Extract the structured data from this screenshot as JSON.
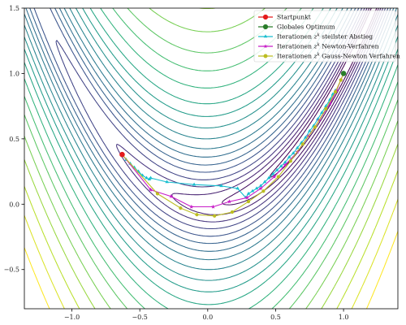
{
  "chart_data": {
    "type": "line",
    "title": "",
    "xlabel": "",
    "ylabel": "",
    "xlim": [
      -1.35,
      1.4
    ],
    "ylim": [
      -0.8,
      1.5
    ],
    "xticks": [
      -1.0,
      -0.5,
      0.0,
      0.5,
      1.0
    ],
    "xtick_labels": [
      "−1.0",
      "−0.5",
      "0.0",
      "0.5",
      "1.0"
    ],
    "yticks": [
      -0.5,
      0.0,
      0.5,
      1.0,
      1.5
    ],
    "ytick_labels": [
      "−0.5",
      "0.0",
      "0.5",
      "1.0",
      "1.5"
    ],
    "grid": false,
    "legend_position": "top-right",
    "background": {
      "kind": "contour",
      "function": "rosenbrock",
      "colormap": "viridis",
      "levels": [
        0.3,
        0.8,
        1.6,
        2.8,
        4.5,
        7,
        10,
        14,
        19,
        26,
        35,
        46,
        60,
        80,
        105,
        135,
        175,
        225,
        290,
        370,
        470
      ]
    },
    "legend": [
      "Startpunkt",
      "Globales Optimum",
      "Iterationen z^k steilster Abstieg",
      "Iterationen z^k Newton-Verfahren",
      "Iterationen z^k Gauss-Newton Verfahren"
    ],
    "series": [
      {
        "name": "Startpunkt",
        "color": "#e41a1c",
        "marker": "circle",
        "points": [
          [
            -0.63,
            0.38
          ]
        ]
      },
      {
        "name": "Globales Optimum",
        "color": "#2a7d2a",
        "marker": "circle",
        "points": [
          [
            1.0,
            1.0
          ]
        ]
      },
      {
        "name": "Iterationen z^k steilster Abstieg",
        "color": "#17becf",
        "marker": "tri",
        "points": [
          [
            -0.63,
            0.38
          ],
          [
            -0.6,
            0.34
          ],
          [
            -0.57,
            0.31
          ],
          [
            -0.54,
            0.28
          ],
          [
            -0.51,
            0.25
          ],
          [
            -0.48,
            0.22
          ],
          [
            -0.45,
            0.2
          ],
          [
            -0.43,
            0.19
          ],
          [
            -0.42,
            0.2
          ],
          [
            -0.3,
            0.17
          ],
          [
            -0.1,
            0.15
          ],
          [
            0.1,
            0.14
          ],
          [
            0.22,
            0.12
          ],
          [
            0.28,
            0.05
          ],
          [
            0.3,
            0.08
          ],
          [
            0.33,
            0.1
          ],
          [
            0.36,
            0.12
          ],
          [
            0.39,
            0.14
          ],
          [
            0.42,
            0.17
          ],
          [
            0.45,
            0.2
          ],
          [
            0.48,
            0.23
          ],
          [
            0.51,
            0.26
          ],
          [
            0.54,
            0.29
          ],
          [
            0.57,
            0.32
          ],
          [
            0.6,
            0.36
          ],
          [
            0.63,
            0.39
          ],
          [
            0.66,
            0.43
          ],
          [
            0.69,
            0.47
          ],
          [
            0.72,
            0.51
          ],
          [
            0.75,
            0.56
          ],
          [
            0.78,
            0.6
          ],
          [
            0.81,
            0.65
          ],
          [
            0.84,
            0.7
          ],
          [
            0.87,
            0.75
          ],
          [
            0.9,
            0.8
          ],
          [
            0.92,
            0.84
          ],
          [
            0.94,
            0.87
          ]
        ]
      },
      {
        "name": "Iterationen z^k Newton-Verfahren",
        "color": "#c81ec8",
        "marker": "star",
        "points": [
          [
            -0.63,
            0.38
          ],
          [
            -0.42,
            0.11
          ],
          [
            -0.27,
            0.06
          ],
          [
            -0.12,
            -0.02
          ],
          [
            0.04,
            -0.02
          ],
          [
            0.16,
            0.02
          ],
          [
            0.29,
            0.05
          ],
          [
            0.39,
            0.12
          ],
          [
            0.49,
            0.21
          ],
          [
            0.57,
            0.3
          ],
          [
            0.66,
            0.4
          ],
          [
            0.74,
            0.52
          ],
          [
            0.82,
            0.64
          ],
          [
            0.9,
            0.77
          ],
          [
            0.95,
            0.87
          ],
          [
            0.98,
            0.95
          ],
          [
            1.0,
            1.0
          ]
        ]
      },
      {
        "name": "Iterationen z^k Gauss-Newton Verfahren",
        "color": "#bcbd22",
        "marker": "circle-small",
        "points": [
          [
            -0.63,
            0.38
          ],
          [
            -0.37,
            0.08
          ],
          [
            -0.2,
            -0.03
          ],
          [
            -0.08,
            -0.08
          ],
          [
            0.05,
            -0.09
          ],
          [
            0.18,
            -0.06
          ],
          [
            0.3,
            0.02
          ],
          [
            0.41,
            0.1
          ],
          [
            0.52,
            0.21
          ],
          [
            0.61,
            0.33
          ],
          [
            0.7,
            0.46
          ],
          [
            0.79,
            0.59
          ],
          [
            0.87,
            0.73
          ],
          [
            0.94,
            0.86
          ],
          [
            0.98,
            0.95
          ],
          [
            1.0,
            1.0
          ]
        ]
      }
    ]
  }
}
